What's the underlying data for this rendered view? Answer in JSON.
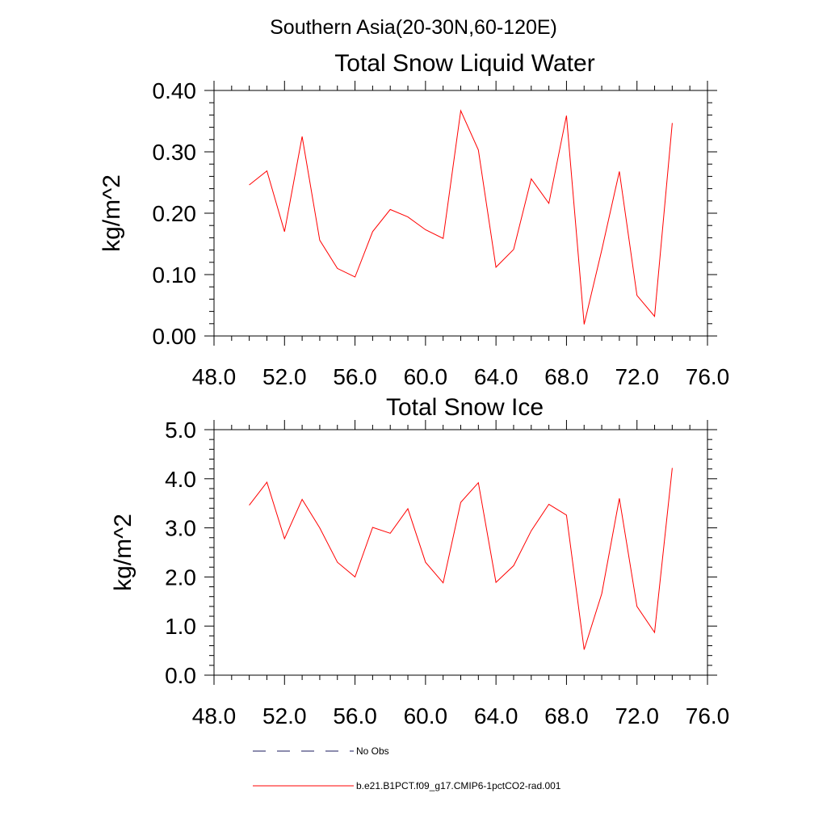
{
  "figure_title": "Southern Asia(20-30N,60-120E)",
  "chart_data": [
    {
      "type": "line",
      "title": "Total Snow Liquid Water",
      "ylabel": "kg/m^2",
      "xlabel": "",
      "xlim": [
        48,
        76
      ],
      "ylim": [
        0,
        0.4
      ],
      "xticks": [
        "48.0",
        "52.0",
        "56.0",
        "60.0",
        "64.0",
        "68.0",
        "72.0",
        "76.0"
      ],
      "yticks": [
        "0.00",
        "0.10",
        "0.20",
        "0.30",
        "0.40"
      ],
      "series": [
        {
          "name": "b.e21.B1PCT.f09_g17.CMIP6-1pctCO2-rad.001",
          "color": "#ff0000",
          "x": [
            50,
            51,
            52,
            53,
            54,
            55,
            56,
            57,
            58,
            59,
            60,
            61,
            62,
            63,
            64,
            65,
            66,
            67,
            68,
            69,
            70,
            71,
            72,
            73,
            74
          ],
          "y": [
            0.246,
            0.269,
            0.17,
            0.325,
            0.156,
            0.11,
            0.096,
            0.17,
            0.206,
            0.194,
            0.173,
            0.159,
            0.367,
            0.303,
            0.112,
            0.141,
            0.256,
            0.216,
            0.359,
            0.019,
            0.14,
            0.268,
            0.066,
            0.032,
            0.347
          ]
        }
      ]
    },
    {
      "type": "line",
      "title": "Total Snow Ice",
      "ylabel": "kg/m^2",
      "xlabel": "",
      "xlim": [
        48,
        76
      ],
      "ylim": [
        0,
        5
      ],
      "xticks": [
        "48.0",
        "52.0",
        "56.0",
        "60.0",
        "64.0",
        "68.0",
        "72.0",
        "76.0"
      ],
      "yticks": [
        "0.0",
        "1.0",
        "2.0",
        "3.0",
        "4.0",
        "5.0"
      ],
      "series": [
        {
          "name": "b.e21.B1PCT.f09_g17.CMIP6-1pctCO2-rad.001",
          "color": "#ff0000",
          "x": [
            50,
            51,
            52,
            53,
            54,
            55,
            56,
            57,
            58,
            59,
            60,
            61,
            62,
            63,
            64,
            65,
            66,
            67,
            68,
            69,
            70,
            71,
            72,
            73,
            74
          ],
          "y": [
            3.46,
            3.93,
            2.78,
            3.58,
            3.0,
            2.3,
            2.0,
            3.01,
            2.89,
            3.39,
            2.3,
            1.88,
            3.52,
            3.92,
            1.89,
            2.23,
            2.94,
            3.48,
            3.26,
            0.52,
            1.66,
            3.6,
            1.4,
            0.87,
            4.22
          ]
        }
      ]
    }
  ],
  "legend": [
    {
      "label": "No Obs",
      "style": "dashed",
      "color": "#1a1a5e"
    },
    {
      "label": "b.e21.B1PCT.f09_g17.CMIP6-1pctCO2-rad.001",
      "style": "solid",
      "color": "#ff0000"
    }
  ]
}
